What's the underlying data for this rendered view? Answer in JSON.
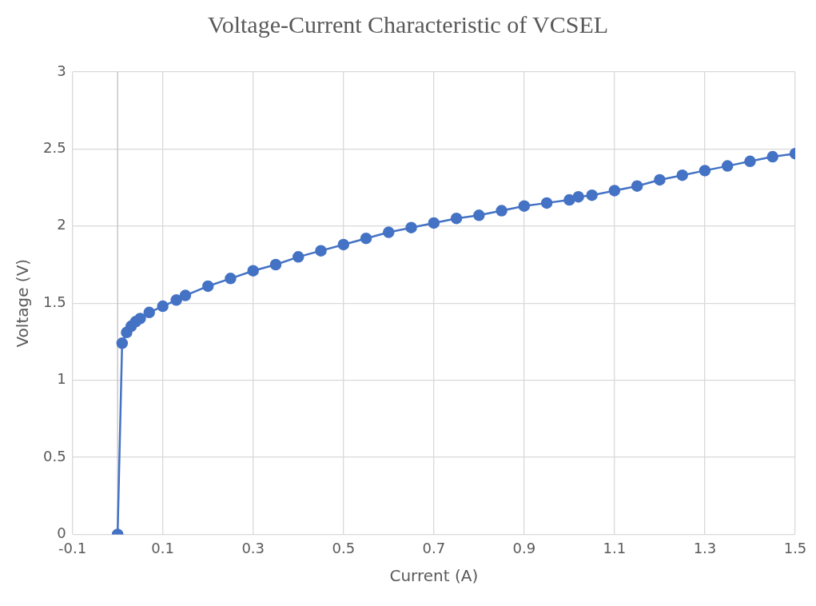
{
  "chart_data": {
    "type": "line",
    "title": "Voltage-Current Characteristic of VCSEL",
    "xlabel": "Current (A)",
    "ylabel": "Voltage (V)",
    "series": [
      {
        "color": "#4472c4",
        "x": [
          0,
          0.01,
          0.02,
          0.03,
          0.04,
          0.05,
          0.07,
          0.1,
          0.13,
          0.15,
          0.2,
          0.25,
          0.3,
          0.35,
          0.4,
          0.45,
          0.5,
          0.55,
          0.6,
          0.65,
          0.7,
          0.75,
          0.8,
          0.85,
          0.9,
          0.95,
          1.0,
          1.02,
          1.05,
          1.1,
          1.15,
          1.2,
          1.25,
          1.3,
          1.35,
          1.4,
          1.45,
          1.5
        ],
        "values": [
          0,
          1.24,
          1.31,
          1.35,
          1.38,
          1.4,
          1.44,
          1.48,
          1.52,
          1.55,
          1.61,
          1.66,
          1.71,
          1.75,
          1.8,
          1.84,
          1.88,
          1.92,
          1.96,
          1.99,
          2.02,
          2.05,
          2.07,
          2.1,
          2.13,
          2.15,
          2.17,
          2.19,
          2.2,
          2.23,
          2.26,
          2.3,
          2.33,
          2.36,
          2.39,
          2.42,
          2.45,
          2.47
        ]
      }
    ],
    "xlim": [
      -0.1,
      1.5
    ],
    "xticks": [
      -0.1,
      0.1,
      0.3,
      0.5,
      0.7,
      0.9,
      1.1,
      1.3,
      1.5
    ],
    "ylim": [
      0,
      3
    ],
    "yticks": [
      0,
      0.5,
      1,
      1.5,
      2,
      2.5,
      3
    ],
    "grid": true,
    "legend": false,
    "marker": "circle",
    "line_style": "solid"
  }
}
